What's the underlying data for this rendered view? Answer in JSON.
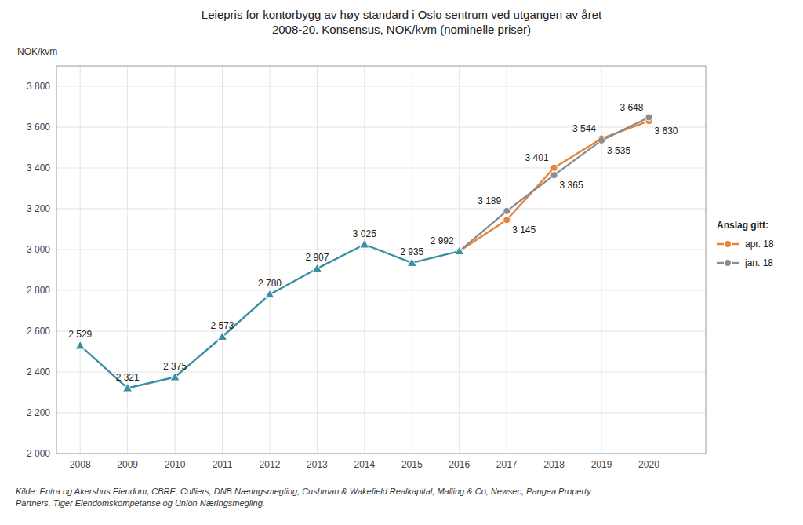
{
  "chart_data": {
    "type": "line",
    "title": "Leiepris for kontorbygg av høy standard i Oslo sentrum ved utgangen av året\n2008-20. Konsensus, NOK/kvm (nominelle priser)",
    "y_label": "NOK/kvm",
    "source": "Kilde: Entra og Akershus Eiendom, CBRE, Colliers, DNB Næringsmegling, Cushman & Wakefield Realkapital, Malling & Co, Newsec, Pangea Property\nPartners, Tiger Eiendomskompetanse og Union Næringsmegling.",
    "legend_title": "Anslag gitt:",
    "legend": "right",
    "grid": true,
    "data_labels": true,
    "x": [
      2008,
      2009,
      2010,
      2011,
      2012,
      2013,
      2014,
      2015,
      2016,
      2017,
      2018,
      2019,
      2020
    ],
    "xlim": [
      2007.5,
      2021.2
    ],
    "xticks": [
      2008,
      2009,
      2010,
      2011,
      2012,
      2013,
      2014,
      2015,
      2016,
      2017,
      2018,
      2019,
      2020
    ],
    "ylim": [
      2000,
      3900
    ],
    "yticks": [
      {
        "value": 2000,
        "label": "2 000"
      },
      {
        "value": 2200,
        "label": "2 200"
      },
      {
        "value": 2400,
        "label": "2 400"
      },
      {
        "value": 2600,
        "label": "2 600"
      },
      {
        "value": 2800,
        "label": "2 800"
      },
      {
        "value": 3000,
        "label": "3 000"
      },
      {
        "value": 3200,
        "label": "3 200"
      },
      {
        "value": 3400,
        "label": "3 400"
      },
      {
        "value": 3600,
        "label": "3 600"
      },
      {
        "value": 3800,
        "label": "3 800"
      }
    ],
    "series": [
      {
        "color": "#3a8fa3",
        "marker": "triangle",
        "values": [
          2529,
          2321,
          2375,
          2573,
          2780,
          2907,
          3025,
          2935,
          2992,
          null,
          null,
          null,
          null
        ],
        "value_labels": [
          "2 529",
          "2 321",
          "2 375",
          "2 573",
          "2 780",
          "2 907",
          "3 025",
          "2 935",
          "2 992",
          null,
          null,
          null,
          null
        ]
      },
      {
        "name": "apr. 18",
        "color": "#e8833a",
        "marker": "circle",
        "values": [
          null,
          null,
          null,
          null,
          null,
          null,
          null,
          null,
          2992,
          3145,
          3401,
          3544,
          3630
        ],
        "value_labels": [
          null,
          null,
          null,
          null,
          null,
          null,
          null,
          null,
          null,
          "3 145",
          "3 401",
          "3 544",
          "3 630"
        ]
      },
      {
        "name": "jan. 18",
        "color": "#8c8c8c",
        "marker": "circle",
        "values": [
          null,
          null,
          null,
          null,
          null,
          null,
          null,
          null,
          2992,
          3189,
          3365,
          3535,
          3648
        ],
        "value_labels": [
          null,
          null,
          null,
          null,
          null,
          null,
          null,
          null,
          null,
          "3 189",
          "3 365",
          "3 535",
          "3 648"
        ]
      }
    ]
  }
}
